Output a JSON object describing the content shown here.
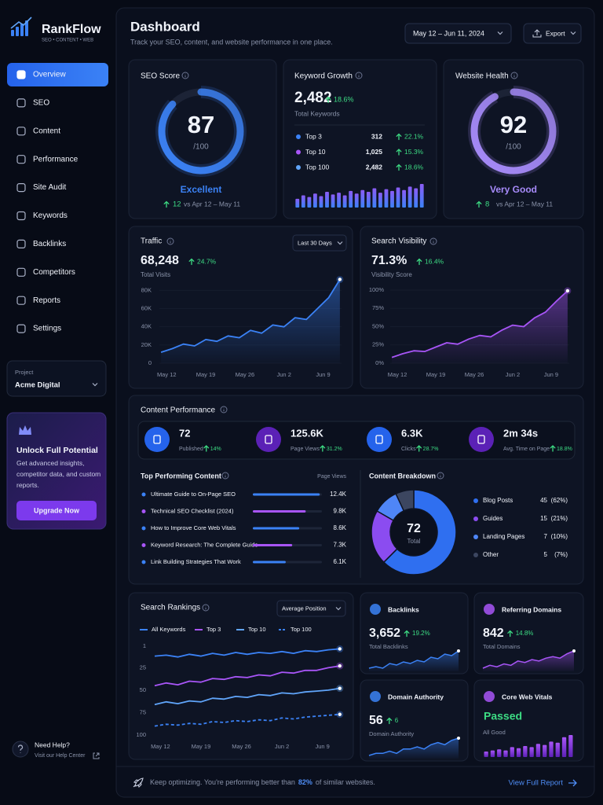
{
  "brand": {
    "name": "RankFlow",
    "tagline": "SEO • CONTENT • WEB"
  },
  "nav": {
    "items": [
      "Overview",
      "SEO",
      "Content",
      "Performance",
      "Site Audit",
      "Keywords",
      "Backlinks",
      "Competitors",
      "Reports",
      "Settings"
    ],
    "active": 0
  },
  "project": {
    "label": "Project",
    "name": "Acme Digital"
  },
  "upgrade": {
    "title": "Unlock Full Potential",
    "text": "Get advanced insights, competitor data, and custom reports.",
    "button": "Upgrade Now"
  },
  "help": {
    "title": "Need Help?",
    "link": "Visit our Help Center"
  },
  "header": {
    "title": "Dashboard",
    "subtitle": "Track your SEO, content, and website performance in one place.",
    "date_range": "May 12 – Jun 11, 2024",
    "export": "Export"
  },
  "seo_score": {
    "title": "SEO Score",
    "value": 87,
    "max": {
      "value": 100,
      "label": "/100"
    },
    "rating": "Excellent",
    "change": 12,
    "compare": "vs Apr 12 – May 11",
    "color": "#3b82f6"
  },
  "keyword_growth": {
    "title": "Keyword Growth",
    "total": "2,482",
    "change": "18.6%",
    "subtitle": "Total Keywords",
    "rows": [
      {
        "name": "Top 3",
        "value": "312",
        "change": "22.1%",
        "color": "#3b82f6"
      },
      {
        "name": "Top 10",
        "value": "1,025",
        "change": "15.3%",
        "color": "#a855f7"
      },
      {
        "name": "Top 100",
        "value": "2,482",
        "change": "18.6%",
        "color": "#60a5fa"
      }
    ],
    "trend": [
      10,
      14,
      12,
      16,
      13,
      18,
      15,
      17,
      14,
      19,
      16,
      20,
      18,
      22,
      17,
      21,
      19,
      23,
      20,
      24,
      22,
      27
    ]
  },
  "website_health": {
    "title": "Website Health",
    "value": 92,
    "max": {
      "value": 100,
      "label": "/100"
    },
    "rating": "Very Good",
    "change": 8,
    "compare": "vs Apr 12 – May 11",
    "color": "#a78bfa"
  },
  "traffic": {
    "title": "Traffic",
    "range": "Last 30 Days",
    "total": "68,248",
    "change": "24.7%",
    "subtitle": "Total Visits",
    "chart": {
      "type": "area",
      "x": [
        -1,
        1,
        3,
        5,
        7,
        9,
        11,
        13,
        15,
        17,
        19,
        21,
        23,
        25,
        27,
        29,
        31
      ],
      "xlim": [
        -1.3,
        31.3
      ],
      "xticks": [
        {
          "value": 0,
          "label": "May 12"
        },
        {
          "value": 7,
          "label": "May 19"
        },
        {
          "value": 14,
          "label": "May 26"
        },
        {
          "value": 21,
          "label": "Jun 2"
        },
        {
          "value": 28,
          "label": "Jun 9"
        }
      ],
      "values": [
        12000,
        16000,
        21000,
        19000,
        26000,
        24000,
        30000,
        28000,
        36000,
        33000,
        42000,
        40000,
        50000,
        48000,
        60000,
        72000,
        92000
      ],
      "color": "#3b82f6",
      "ylim": [
        0,
        95000
      ],
      "yticks": [
        0,
        {
          "value": 20000,
          "label": "20K"
        },
        {
          "value": 40000,
          "label": "40K"
        },
        {
          "value": 60000,
          "label": "60K"
        },
        {
          "value": 80000,
          "label": "80K"
        }
      ],
      "grid": true
    }
  },
  "search_visibility": {
    "title": "Search Visibility",
    "total": "71.3%",
    "change": "16.4%",
    "subtitle": "Visibility Score",
    "chart": {
      "type": "area",
      "x": [
        -1,
        1,
        3,
        5,
        7,
        9,
        11,
        13,
        15,
        17,
        19,
        21,
        23,
        25,
        27,
        29,
        31
      ],
      "xlim": [
        -1.3,
        31.3
      ],
      "xticks": [
        {
          "value": 0,
          "label": "May 12"
        },
        {
          "value": 7,
          "label": "May 19"
        },
        {
          "value": 14,
          "label": "May 26"
        },
        {
          "value": 21,
          "label": "Jun 2"
        },
        {
          "value": 28,
          "label": "Jun 9"
        }
      ],
      "values": [
        8,
        13,
        17,
        16,
        22,
        28,
        26,
        33,
        38,
        36,
        45,
        52,
        50,
        62,
        70,
        85,
        99
      ],
      "color": "#a855f7",
      "ylim": [
        0,
        100
      ],
      "yticks": [
        {
          "value": 0,
          "label": "0%"
        },
        {
          "value": 25,
          "label": "25%"
        },
        {
          "value": 50,
          "label": "50%"
        },
        {
          "value": 75,
          "label": "75%"
        },
        {
          "value": 100,
          "label": "100%"
        }
      ],
      "grid": true
    }
  },
  "content_performance": {
    "title": "Content Performance",
    "stats": [
      {
        "value": "72",
        "label": "Published",
        "change": "14%",
        "color": "#2563eb"
      },
      {
        "value": "125.6K",
        "label": "Page Views",
        "change": "31.2%",
        "color": "#5b21b6"
      },
      {
        "value": "6.3K",
        "label": "Clicks",
        "change": "28.7%",
        "color": "#2563eb"
      },
      {
        "value": "2m 34s",
        "label": "Avg. Time on Page",
        "change": "18.8%",
        "color": "#5b21b6"
      }
    ],
    "top_content": {
      "title": "Top Performing Content",
      "column": "Page Views",
      "titles": [
        "Ultimate Guide to On-Page SEO",
        "Technical SEO Checklist (2024)",
        "How to Improve Core Web Vitals",
        "Keyword Research: The Complete Guide",
        "Link Building Strategies That Work"
      ],
      "values": [
        12400,
        9800,
        8600,
        7300,
        6100
      ],
      "value_labels": [
        "12.4K",
        "9.8K",
        "8.6K",
        "7.3K",
        "6.1K"
      ],
      "colors": [
        "#3b82f6",
        "#a855f7",
        "#3b82f6",
        "#a855f7",
        "#3b82f6"
      ],
      "xlim": [
        0,
        12800
      ]
    },
    "breakdown": {
      "type": "donut",
      "title": "Content Breakdown",
      "total": 72,
      "total_label": "Total",
      "categories": [
        "Blog Posts",
        "Guides",
        "Landing Pages",
        "Other"
      ],
      "values": [
        45,
        15,
        7,
        5
      ],
      "share_labels": [
        "(62%)",
        "(21%)",
        "(10%)",
        "(7%)"
      ],
      "colors": [
        "#2f6ff0",
        "#8b4cf0",
        "#4f86f7",
        "#3c4660"
      ]
    }
  },
  "search_rankings": {
    "title": "Search Rankings",
    "metric": "Average Position",
    "chart": {
      "type": "line",
      "x": [
        -1,
        1,
        3,
        5,
        7,
        9,
        11,
        13,
        15,
        17,
        19,
        21,
        23,
        25,
        27,
        29,
        31
      ],
      "xlim": [
        -1,
        31.3
      ],
      "xticks": [
        {
          "value": 0,
          "label": "May 12"
        },
        {
          "value": 7,
          "label": "May 19"
        },
        {
          "value": 14,
          "label": "May 26"
        },
        {
          "value": 21,
          "label": "Jun 2"
        },
        {
          "value": 28,
          "label": "Jun 9"
        }
      ],
      "ylim": [
        100,
        1
      ],
      "yticks": [
        1,
        25,
        50,
        75,
        100
      ],
      "grid": false,
      "series": [
        {
          "name": "All Keywords",
          "color": "#3b82f6",
          "values": [
            12,
            11,
            13,
            10,
            12,
            9,
            11,
            8,
            10,
            8,
            9,
            7,
            9,
            6,
            7,
            5,
            4
          ]
        },
        {
          "name": "Top 3",
          "color": "#a855f7",
          "values": [
            45,
            42,
            44,
            40,
            41,
            37,
            38,
            35,
            36,
            33,
            34,
            30,
            31,
            28,
            28,
            25,
            23
          ]
        },
        {
          "name": "Top 10",
          "color": "#60a5fa",
          "values": [
            66,
            63,
            65,
            62,
            63,
            59,
            60,
            57,
            58,
            55,
            56,
            53,
            54,
            52,
            51,
            50,
            48
          ]
        },
        {
          "name": "Top 100",
          "color": "#3b82f6",
          "dashed": true,
          "values": [
            90,
            88,
            89,
            87,
            88,
            85,
            86,
            84,
            85,
            83,
            84,
            81,
            82,
            80,
            79,
            78,
            77
          ]
        }
      ]
    }
  },
  "backlinks": {
    "title": "Backlinks",
    "value": "3,652",
    "change": "19.2%",
    "subtitle": "Total Backlinks",
    "trend": [
      8,
      9,
      8,
      11,
      10,
      12,
      11,
      13,
      12,
      15,
      14,
      17,
      16,
      19
    ],
    "color": "#3b82f6"
  },
  "referring_domains": {
    "title": "Referring Domains",
    "value": "842",
    "change": "14.8%",
    "subtitle": "Total Domains",
    "trend": [
      6,
      8,
      7,
      9,
      8,
      11,
      10,
      12,
      11,
      13,
      14,
      13,
      16,
      18
    ],
    "color": "#a855f7"
  },
  "domain_authority": {
    "title": "Domain Authority",
    "value": "56",
    "change": "6",
    "subtitle": "Domain Authority",
    "trend": [
      5,
      6,
      6,
      7,
      6,
      8,
      8,
      9,
      8,
      10,
      11,
      10,
      12,
      13
    ],
    "color": "#3b82f6"
  },
  "core_web_vitals": {
    "title": "Core Web Vitals",
    "status": "Passed",
    "subtitle": "All Good",
    "trend": [
      5,
      6,
      7,
      6,
      9,
      8,
      10,
      9,
      12,
      11,
      14,
      13,
      18,
      20
    ],
    "color": "#a855f7"
  },
  "footer": {
    "text": "Keep optimizing. You're performing better than",
    "highlight": "82%",
    "text_end": "of similar websites.",
    "link": "View Full Report"
  }
}
